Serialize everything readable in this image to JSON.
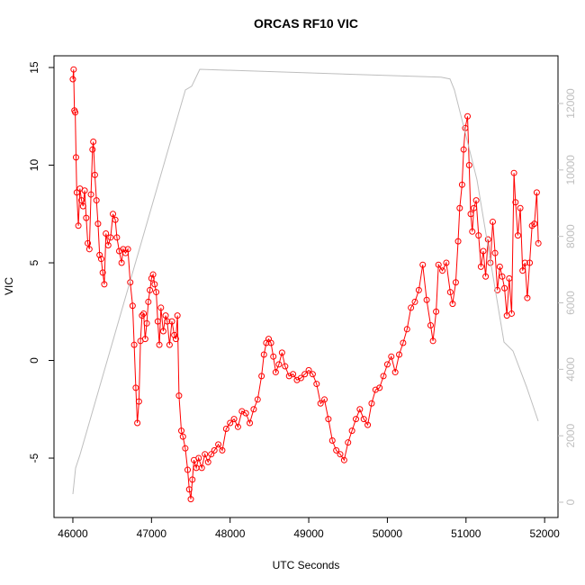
{
  "chart_data": {
    "type": "line",
    "title": "ORCAS RF10 VIC",
    "xlabel": "UTC Seconds",
    "ylabel": "VIC",
    "xlim": [
      45760,
      52170
    ],
    "xticks": [
      46000,
      47000,
      48000,
      49000,
      50000,
      51000,
      52000
    ],
    "ylim": [
      -8.04,
      15.6
    ],
    "yticks": [
      -5,
      0,
      5,
      10,
      15
    ],
    "y2lim": [
      -460,
      13436
    ],
    "y2ticks": [
      0,
      2000,
      4000,
      6000,
      8000,
      10000,
      12000
    ],
    "series": [
      {
        "color": "#ff0000",
        "marker": "circle",
        "x": [
          46000,
          46010,
          46020,
          46030,
          46040,
          46050,
          46070,
          46090,
          46110,
          46130,
          46150,
          46170,
          46190,
          46210,
          46230,
          46250,
          46260,
          46280,
          46300,
          46320,
          46340,
          46360,
          46380,
          46400,
          46420,
          46450,
          46480,
          46510,
          46540,
          46560,
          46590,
          46620,
          46640,
          46670,
          46700,
          46730,
          46760,
          46780,
          46800,
          46820,
          46840,
          46860,
          46880,
          46900,
          46920,
          46940,
          46960,
          46980,
          47000,
          47020,
          47040,
          47060,
          47080,
          47100,
          47120,
          47150,
          47180,
          47200,
          47230,
          47260,
          47290,
          47310,
          47330,
          47350,
          47380,
          47400,
          47430,
          47460,
          47480,
          47500,
          47520,
          47540,
          47570,
          47600,
          47640,
          47680,
          47720,
          47760,
          47800,
          47850,
          47900,
          47950,
          48000,
          48050,
          48100,
          48150,
          48200,
          48250,
          48300,
          48350,
          48400,
          48430,
          48460,
          48490,
          48520,
          48550,
          48580,
          48620,
          48660,
          48700,
          48750,
          48800,
          48850,
          48900,
          48950,
          49000,
          49050,
          49100,
          49150,
          49200,
          49250,
          49300,
          49350,
          49400,
          49450,
          49500,
          49550,
          49600,
          49650,
          49700,
          49750,
          49800,
          49850,
          49900,
          49950,
          50000,
          50050,
          50100,
          50150,
          50200,
          50250,
          50300,
          50350,
          50400,
          50450,
          50500,
          50550,
          50580,
          50620,
          50650,
          50700,
          50750,
          50800,
          50830,
          50870,
          50900,
          50920,
          50950,
          50970,
          50990,
          51020,
          51040,
          51060,
          51080,
          51100,
          51130,
          51160,
          51190,
          51220,
          51250,
          51280,
          51310,
          51340,
          51370,
          51400,
          51430,
          51460,
          51490,
          51520,
          51550,
          51580,
          51610,
          51630,
          51660,
          51690,
          51720,
          51750,
          51780,
          51810,
          51840,
          51870,
          51900,
          51920
        ],
        "values": [
          14.4,
          14.9,
          12.8,
          12.7,
          10.4,
          8.6,
          6.9,
          8.8,
          8.2,
          7.9,
          8.7,
          7.3,
          6.0,
          5.7,
          8.5,
          10.8,
          11.2,
          9.5,
          8.2,
          7.0,
          5.4,
          5.2,
          4.5,
          3.9,
          6.5,
          5.9,
          6.3,
          7.5,
          7.2,
          6.3,
          5.6,
          5.0,
          5.7,
          5.5,
          5.7,
          4.0,
          2.8,
          0.8,
          -1.4,
          -3.2,
          -2.1,
          1.0,
          2.3,
          2.4,
          1.1,
          1.9,
          3.0,
          3.6,
          4.2,
          4.4,
          3.9,
          3.5,
          2.0,
          0.8,
          2.7,
          1.5,
          2.3,
          2.0,
          0.8,
          2.0,
          1.3,
          1.1,
          2.3,
          -1.8,
          -3.6,
          -3.9,
          -4.5,
          -5.6,
          -6.6,
          -7.1,
          -6.1,
          -5.1,
          -5.5,
          -5.0,
          -5.5,
          -4.8,
          -5.2,
          -4.8,
          -4.6,
          -4.3,
          -4.6,
          -3.5,
          -3.2,
          -3.0,
          -3.4,
          -2.6,
          -2.7,
          -3.2,
          -2.5,
          -2.0,
          -0.8,
          0.3,
          0.9,
          1.1,
          0.9,
          0.2,
          -0.6,
          -0.2,
          0.4,
          -0.3,
          -0.8,
          -0.7,
          -1.0,
          -0.9,
          -0.7,
          -0.5,
          -0.7,
          -1.2,
          -2.2,
          -2.0,
          -3.0,
          -4.1,
          -4.6,
          -4.8,
          -5.1,
          -4.2,
          -3.6,
          -3.0,
          -2.5,
          -3.0,
          -3.3,
          -2.2,
          -1.5,
          -1.4,
          -0.8,
          -0.2,
          0.2,
          -0.6,
          0.3,
          0.9,
          1.6,
          2.7,
          3.0,
          3.6,
          4.9,
          3.1,
          1.8,
          1.0,
          2.5,
          4.9,
          4.6,
          5.0,
          3.5,
          2.9,
          4.0,
          6.1,
          7.8,
          9.0,
          10.8,
          11.9,
          12.5,
          10.0,
          7.5,
          6.6,
          7.8,
          8.2,
          6.4,
          4.8,
          5.6,
          4.3,
          6.2,
          5.0,
          7.1,
          5.5,
          3.6,
          4.8,
          4.3,
          3.7,
          2.3,
          4.2,
          2.4,
          9.6,
          8.1,
          6.4,
          7.8,
          4.6,
          5.0,
          3.2,
          5.0,
          6.9,
          7.0,
          8.6,
          6.0
        ]
      },
      {
        "color": "#bebebe",
        "axis": "y2",
        "x": [
          46000,
          46035,
          46092,
          47431,
          47511,
          47614,
          50682,
          50797,
          50853,
          50968,
          51140,
          51483,
          51598,
          51770,
          51918
        ],
        "values": [
          244,
          1030,
          1440,
          12410,
          12520,
          13030,
          12790,
          12740,
          12410,
          11330,
          9700,
          4820,
          4550,
          3470,
          2440
        ]
      }
    ]
  }
}
